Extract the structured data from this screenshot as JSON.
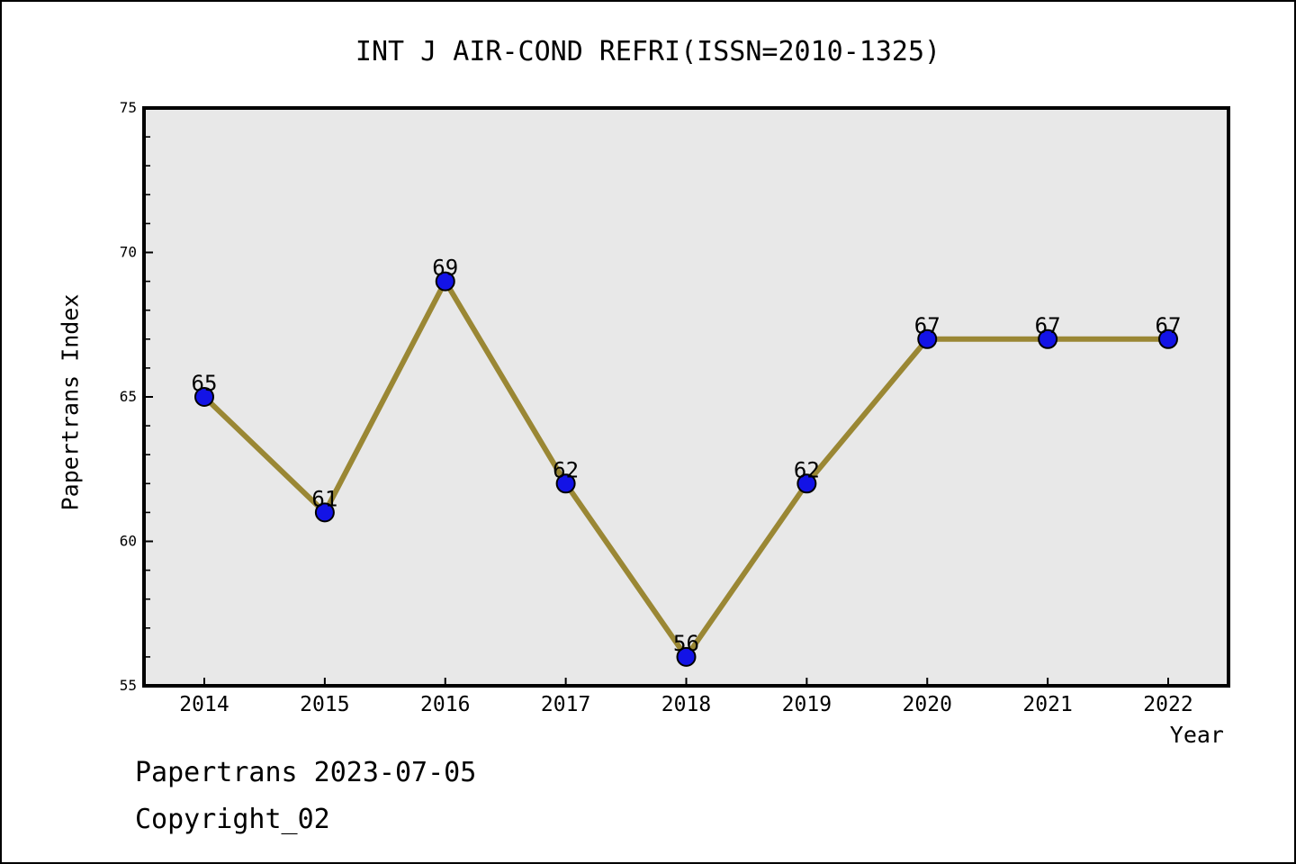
{
  "chart_data": {
    "type": "line",
    "title": "INT J AIR-COND REFRI(ISSN=2010-1325)",
    "xlabel": "Year",
    "ylabel": "Papertrans Index",
    "x": [
      "2014",
      "2015",
      "2016",
      "2017",
      "2018",
      "2019",
      "2020",
      "2021",
      "2022"
    ],
    "values": [
      65,
      61,
      69,
      62,
      56,
      62,
      67,
      67,
      67
    ],
    "ylim": [
      55,
      75
    ],
    "yticks_major": [
      55,
      60,
      65,
      70,
      75
    ],
    "ytick_minor_step": 1,
    "grid": false,
    "legend_position": "none",
    "data_labels_shown": true,
    "colors": {
      "line": "#9a8734",
      "marker_fill": "#1313e6",
      "marker_edge": "#000000",
      "plot_background": "#e8e8e8",
      "axis": "#000000",
      "text": "#000000",
      "page_background": "#ffffff"
    }
  },
  "footer": {
    "line1": "Papertrans 2023-07-05",
    "line2": "Copyright_02"
  }
}
